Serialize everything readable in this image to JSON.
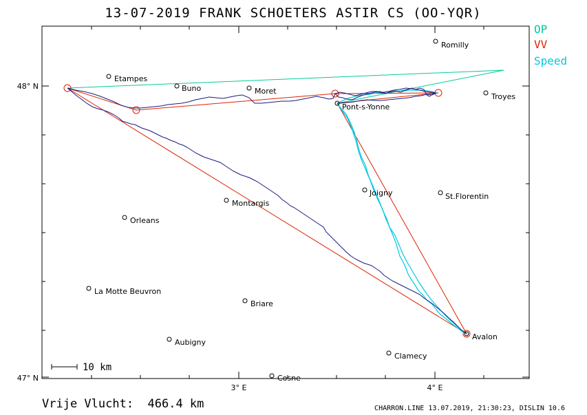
{
  "title": "13-07-2019   FRANK SCHOETERS   ASTIR CS (OO-YQR)",
  "legend": [
    {
      "label": "OP",
      "color": "#00cc99"
    },
    {
      "label": "VV",
      "color": "#dd2200"
    },
    {
      "label": "Speed",
      "color": "#00c8e0"
    }
  ],
  "axes": {
    "lat_labels": [
      "48° N",
      "47° N"
    ],
    "lon_labels": [
      "3° E",
      "4° E"
    ]
  },
  "towns": [
    {
      "name": "Romilly"
    },
    {
      "name": "Etampes"
    },
    {
      "name": "Buno"
    },
    {
      "name": "Moret"
    },
    {
      "name": "Troyes"
    },
    {
      "name": "Pont-s-Yonne"
    },
    {
      "name": "Joigny"
    },
    {
      "name": "St.Florentin"
    },
    {
      "name": "Montargis"
    },
    {
      "name": "Orleans"
    },
    {
      "name": "La Motte Beuvron"
    },
    {
      "name": "Briare"
    },
    {
      "name": "Avalon"
    },
    {
      "name": "Aubigny"
    },
    {
      "name": "Clamecy"
    },
    {
      "name": "Cosne"
    }
  ],
  "scale_bar": "10 km",
  "distance": "Vrije Vlucht:  466.4 km",
  "footer_info": "CHARRON.LINE 13.07.2019, 21:30:23, DISLIN 10.6"
}
